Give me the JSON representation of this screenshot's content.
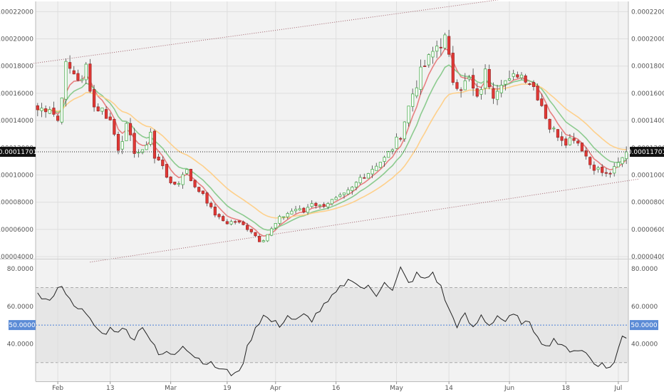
{
  "chart_data": [
    {
      "type": "candlestick",
      "title": "",
      "y_ticks": [
        "0.00004000",
        "0.00006000",
        "0.00008000",
        "0.00010000",
        "0.00012000",
        "0.00014000",
        "0.00016000",
        "0.00018000",
        "0.00020000",
        "0.00022000"
      ],
      "ylim": [
        3.85e-05,
        0.0002275
      ],
      "x_tick_labels": [
        "Feb",
        "13",
        "Mar",
        "19",
        "Apr",
        "16",
        "May",
        "14",
        "Jun",
        "18",
        "Jul"
      ],
      "x_tick_day_index": [
        5,
        18,
        33,
        47,
        59,
        74,
        89,
        102,
        117,
        131,
        144
      ],
      "n_days": 147,
      "last_price_label": "0.00011701",
      "last_price": 0.00011701,
      "colors": {
        "up": "#4caf50",
        "down": "#e53935",
        "ma_fast": "#e57373",
        "ma_mid": "#81c784",
        "ma_slow": "#ffcc80",
        "channel": "#a0606a",
        "price_line": "#222222"
      },
      "channel": [
        {
          "x0": -1,
          "y0": 0.000182,
          "x1": 115,
          "y1": 0.000229
        },
        {
          "x0": 13,
          "y0": 3.6e-05,
          "x1": 149,
          "y1": 9.7e-05
        }
      ],
      "close_anchors": [
        [
          0,
          0.000148
        ],
        [
          3,
          0.00015
        ],
        [
          5,
          0.00014
        ],
        [
          7,
          0.00018
        ],
        [
          9,
          0.000175
        ],
        [
          11,
          0.000168
        ],
        [
          12,
          0.00018
        ],
        [
          14,
          0.00015
        ],
        [
          16,
          0.000148
        ],
        [
          18,
          0.00014
        ],
        [
          20,
          0.00012
        ],
        [
          22,
          0.000135
        ],
        [
          24,
          0.000118
        ],
        [
          26,
          0.000116
        ],
        [
          28,
          0.000132
        ],
        [
          29,
          0.000112
        ],
        [
          31,
          0.000108
        ],
        [
          33,
          9.2e-05
        ],
        [
          35,
          9.5e-05
        ],
        [
          37,
          0.000105
        ],
        [
          39,
          9e-05
        ],
        [
          41,
          8.7e-05
        ],
        [
          43,
          7.5e-05
        ],
        [
          45,
          6.8e-05
        ],
        [
          47,
          6.5e-05
        ],
        [
          49,
          6.6e-05
        ],
        [
          51,
          6.3e-05
        ],
        [
          53,
          5.9e-05
        ],
        [
          55,
          5.2e-05
        ],
        [
          56,
          5.3e-05
        ],
        [
          58,
          6e-05
        ],
        [
          60,
          6.8e-05
        ],
        [
          62,
          7.2e-05
        ],
        [
          64,
          7.5e-05
        ],
        [
          66,
          7.3e-05
        ],
        [
          68,
          8e-05
        ],
        [
          70,
          7.7e-05
        ],
        [
          72,
          8e-05
        ],
        [
          74,
          8.2e-05
        ],
        [
          76,
          8.5e-05
        ],
        [
          78,
          9e-05
        ],
        [
          80,
          9.8e-05
        ],
        [
          82,
          0.000102
        ],
        [
          84,
          0.000108
        ],
        [
          86,
          0.000112
        ],
        [
          88,
          0.00012
        ],
        [
          90,
          0.00013
        ],
        [
          91,
          0.00014
        ],
        [
          93,
          0.00016
        ],
        [
          95,
          0.000175
        ],
        [
          97,
          0.000185
        ],
        [
          99,
          0.000195
        ],
        [
          101,
          0.0002
        ],
        [
          103,
          0.00017
        ],
        [
          105,
          0.000165
        ],
        [
          107,
          0.00017
        ],
        [
          109,
          0.000155
        ],
        [
          111,
          0.000175
        ],
        [
          113,
          0.00016
        ],
        [
          115,
          0.00017
        ],
        [
          117,
          0.000168
        ],
        [
          119,
          0.000175
        ],
        [
          121,
          0.000172
        ],
        [
          123,
          0.000165
        ],
        [
          125,
          0.000152
        ],
        [
          127,
          0.000135
        ],
        [
          129,
          0.00013
        ],
        [
          131,
          0.000125
        ],
        [
          133,
          0.000128
        ],
        [
          135,
          0.00012
        ],
        [
          137,
          0.000108
        ],
        [
          139,
          0.000104
        ],
        [
          141,
          0.0001
        ],
        [
          143,
          0.000104
        ],
        [
          145,
          0.000112
        ],
        [
          146,
          0.000117
        ]
      ],
      "ma_periods": [
        5,
        10,
        20
      ]
    },
    {
      "type": "line",
      "title": "",
      "y_ticks": [
        "40.0000",
        "60.0000",
        "80.0000"
      ],
      "ylim": [
        20,
        85
      ],
      "band": [
        30,
        70
      ],
      "midline_label": "50.0000",
      "midline": 50,
      "colors": {
        "line": "#222222",
        "band_fill": "#e6e6e6",
        "band_edge": "#aaaaaa",
        "midline": "#4a7fd8",
        "tag": "#5b8bd6"
      },
      "rsi_anchors": [
        [
          0,
          68
        ],
        [
          2,
          63
        ],
        [
          4,
          65
        ],
        [
          6,
          72
        ],
        [
          8,
          63
        ],
        [
          10,
          60
        ],
        [
          12,
          55
        ],
        [
          14,
          50
        ],
        [
          16,
          45
        ],
        [
          18,
          48
        ],
        [
          22,
          47
        ],
        [
          24,
          43
        ],
        [
          26,
          50
        ],
        [
          28,
          42
        ],
        [
          30,
          34
        ],
        [
          32,
          35
        ],
        [
          34,
          35
        ],
        [
          36,
          40
        ],
        [
          38,
          35
        ],
        [
          40,
          32
        ],
        [
          42,
          30
        ],
        [
          44,
          28
        ],
        [
          46,
          26
        ],
        [
          48,
          24
        ],
        [
          49,
          26
        ],
        [
          50,
          24
        ],
        [
          52,
          38
        ],
        [
          54,
          49
        ],
        [
          56,
          55
        ],
        [
          58,
          52
        ],
        [
          60,
          50
        ],
        [
          62,
          55
        ],
        [
          64,
          52
        ],
        [
          66,
          55
        ],
        [
          68,
          53
        ],
        [
          70,
          58
        ],
        [
          72,
          62
        ],
        [
          74,
          67
        ],
        [
          76,
          72
        ],
        [
          78,
          75
        ],
        [
          80,
          70
        ],
        [
          82,
          70
        ],
        [
          84,
          66
        ],
        [
          86,
          74
        ],
        [
          88,
          68
        ],
        [
          90,
          80
        ],
        [
          92,
          72
        ],
        [
          94,
          77
        ],
        [
          96,
          74
        ],
        [
          98,
          78
        ],
        [
          100,
          70
        ],
        [
          102,
          58
        ],
        [
          104,
          50
        ],
        [
          106,
          55
        ],
        [
          108,
          48
        ],
        [
          110,
          55
        ],
        [
          112,
          50
        ],
        [
          114,
          55
        ],
        [
          116,
          52
        ],
        [
          118,
          55
        ],
        [
          120,
          52
        ],
        [
          122,
          50
        ],
        [
          124,
          45
        ],
        [
          126,
          38
        ],
        [
          128,
          43
        ],
        [
          130,
          38
        ],
        [
          132,
          37
        ],
        [
          134,
          37
        ],
        [
          136,
          35
        ],
        [
          138,
          30
        ],
        [
          140,
          29
        ],
        [
          141,
          27
        ],
        [
          143,
          30
        ],
        [
          145,
          44
        ],
        [
          146,
          43
        ]
      ]
    }
  ]
}
